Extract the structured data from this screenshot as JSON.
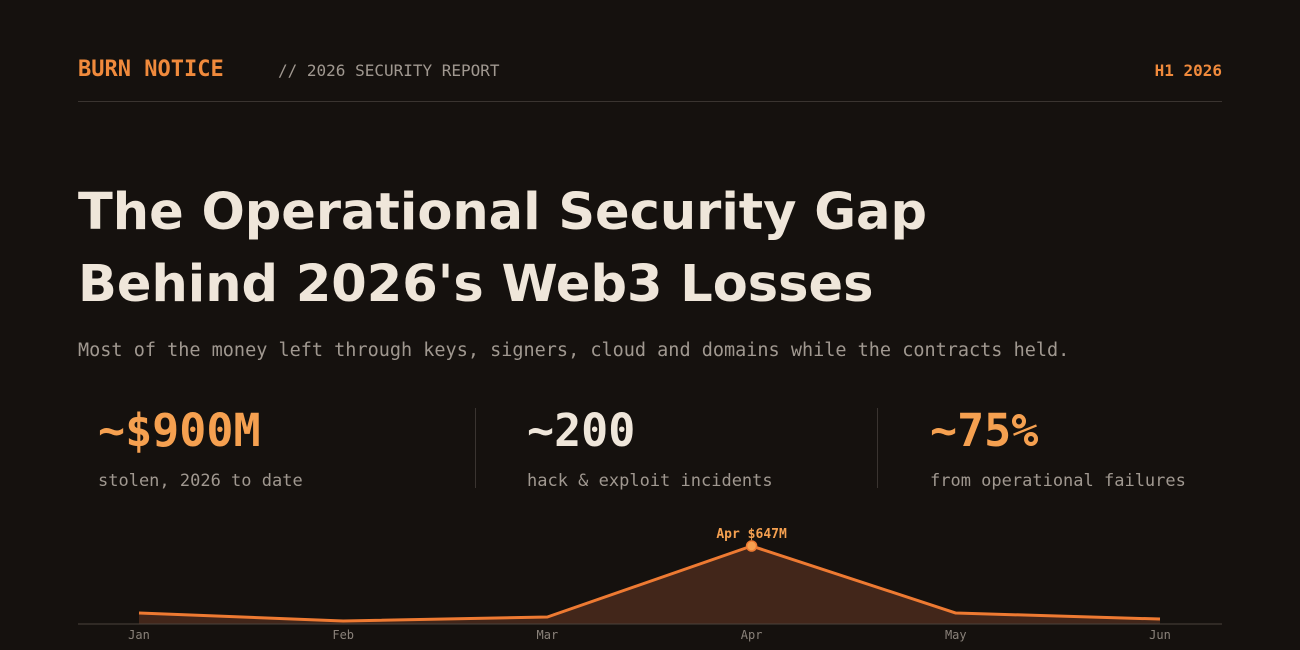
{
  "header": {
    "brand": "BURN NOTICE",
    "report": "// 2026 SECURITY REPORT",
    "period": "H1 2026"
  },
  "title": [
    "The Operational Security Gap",
    "Behind 2026's Web3 Losses"
  ],
  "subtitle": "Most of the money left through keys, signers, cloud and domains while the contracts held.",
  "stats": [
    {
      "value": "~$900M",
      "label": "stolen, 2026 to date",
      "color": "#f5a050"
    },
    {
      "value": "~200",
      "label": "hack & exploit incidents",
      "color": "#efe6da"
    },
    {
      "value": "~75%",
      "label": "from operational failures",
      "color": "#f5a050"
    }
  ],
  "chart_data": {
    "type": "area",
    "categories": [
      "Jan",
      "Feb",
      "Mar",
      "Apr",
      "May",
      "Jun"
    ],
    "values": [
      91,
      25,
      58,
      647,
      91,
      41
    ],
    "value_labels": [
      null,
      null,
      null,
      "Apr $647M",
      null,
      null
    ],
    "color": "#ee7a32",
    "fill": "#42261a"
  }
}
